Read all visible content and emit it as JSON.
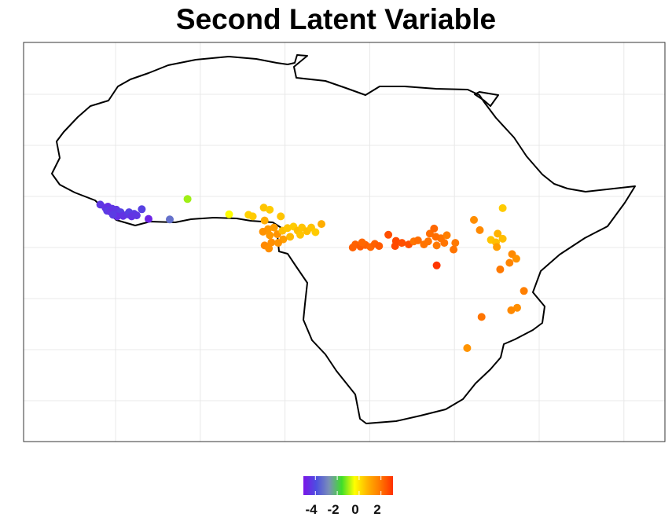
{
  "title": "Second Latent Variable",
  "legend": {
    "tick_labels": [
      "-4",
      "-2",
      "0",
      "2"
    ],
    "tick_values": [
      -4,
      -2,
      0,
      2
    ],
    "range": [
      -5.1,
      3.1
    ],
    "gradient_colors": [
      "#7a16e8",
      "#4d4ee0",
      "#7a8fb8",
      "#3fde2a",
      "#ffff00",
      "#ffb400",
      "#ff7800",
      "#ff3000"
    ]
  },
  "chart_data": {
    "type": "scatter",
    "title": "Second Latent Variable",
    "xlabel": "",
    "ylabel": "",
    "xlim": [
      -20,
      52
    ],
    "ylim": [
      -36,
      38
    ],
    "x_unit": "longitude",
    "y_unit": "latitude",
    "grid": true,
    "legend_position": "bottom",
    "colorbar": {
      "ticks": [
        -4,
        -2,
        0,
        2
      ],
      "range": [
        -5.1,
        3.1
      ]
    },
    "points": [
      {
        "x": -11.8,
        "y": 8.4,
        "value": -4.4
      },
      {
        "x": -11.2,
        "y": 7.8,
        "value": -4.5
      },
      {
        "x": -10.9,
        "y": 8.0,
        "value": -4.6
      },
      {
        "x": -10.4,
        "y": 7.6,
        "value": -4.4
      },
      {
        "x": -11.0,
        "y": 7.2,
        "value": -4.3
      },
      {
        "x": -10.6,
        "y": 7.0,
        "value": -4.5
      },
      {
        "x": -9.9,
        "y": 7.4,
        "value": -4.4
      },
      {
        "x": -9.4,
        "y": 6.9,
        "value": -4.2
      },
      {
        "x": -9.8,
        "y": 6.1,
        "value": -4.6
      },
      {
        "x": -10.3,
        "y": 6.4,
        "value": -4.3
      },
      {
        "x": -9.1,
        "y": 6.2,
        "value": -4.5
      },
      {
        "x": -8.6,
        "y": 6.5,
        "value": -4.4
      },
      {
        "x": -8.4,
        "y": 6.9,
        "value": -4.2
      },
      {
        "x": -7.8,
        "y": 6.6,
        "value": -4.3
      },
      {
        "x": -8.1,
        "y": 6.1,
        "value": -4.5
      },
      {
        "x": -7.5,
        "y": 6.3,
        "value": -4.4
      },
      {
        "x": -6.9,
        "y": 7.5,
        "value": -4.2
      },
      {
        "x": -6.1,
        "y": 5.6,
        "value": -4.8
      },
      {
        "x": -3.6,
        "y": 5.5,
        "value": -3.3
      },
      {
        "x": -1.5,
        "y": 9.5,
        "value": -1.0
      },
      {
        "x": 3.4,
        "y": 6.5,
        "value": -0.4
      },
      {
        "x": 5.7,
        "y": 6.4,
        "value": 0.3
      },
      {
        "x": 6.2,
        "y": 6.1,
        "value": 0.4
      },
      {
        "x": 7.5,
        "y": 7.8,
        "value": 0.5
      },
      {
        "x": 8.2,
        "y": 7.4,
        "value": 0.4
      },
      {
        "x": 9.5,
        "y": 6.1,
        "value": 0.5
      },
      {
        "x": 7.6,
        "y": 5.3,
        "value": 0.9
      },
      {
        "x": 8.0,
        "y": 3.6,
        "value": 1.3
      },
      {
        "x": 7.4,
        "y": 3.1,
        "value": 1.4
      },
      {
        "x": 8.7,
        "y": 3.9,
        "value": 1.2
      },
      {
        "x": 8.2,
        "y": 2.4,
        "value": 1.3
      },
      {
        "x": 9.1,
        "y": 2.6,
        "value": 1.4
      },
      {
        "x": 9.7,
        "y": 3.3,
        "value": 0.6
      },
      {
        "x": 10.3,
        "y": 3.8,
        "value": 0.5
      },
      {
        "x": 11.0,
        "y": 4.1,
        "value": 0.4
      },
      {
        "x": 11.5,
        "y": 3.3,
        "value": 0.6
      },
      {
        "x": 12.0,
        "y": 3.9,
        "value": 0.5
      },
      {
        "x": 12.6,
        "y": 3.2,
        "value": 0.6
      },
      {
        "x": 13.1,
        "y": 3.9,
        "value": 0.5
      },
      {
        "x": 13.6,
        "y": 3.0,
        "value": 0.4
      },
      {
        "x": 14.3,
        "y": 4.6,
        "value": 0.9
      },
      {
        "x": 10.6,
        "y": 2.1,
        "value": 0.7
      },
      {
        "x": 11.8,
        "y": 2.5,
        "value": 0.5
      },
      {
        "x": 9.8,
        "y": 1.6,
        "value": 1.2
      },
      {
        "x": 8.4,
        "y": 1.0,
        "value": 1.5
      },
      {
        "x": 7.6,
        "y": 0.4,
        "value": 1.6
      },
      {
        "x": 8.1,
        "y": -0.2,
        "value": 1.5
      },
      {
        "x": 9.2,
        "y": 0.9,
        "value": 1.4
      },
      {
        "x": 18.3,
        "y": 0.6,
        "value": 2.3
      },
      {
        "x": 18.9,
        "y": 0.2,
        "value": 2.4
      },
      {
        "x": 19.5,
        "y": 0.5,
        "value": 2.3
      },
      {
        "x": 20.1,
        "y": 0.1,
        "value": 2.2
      },
      {
        "x": 20.6,
        "y": 0.7,
        "value": 2.3
      },
      {
        "x": 19.1,
        "y": 1.0,
        "value": 2.2
      },
      {
        "x": 21.1,
        "y": 0.3,
        "value": 2.4
      },
      {
        "x": 18.0,
        "y": 0.0,
        "value": 2.3
      },
      {
        "x": 22.2,
        "y": 2.5,
        "value": 2.6
      },
      {
        "x": 23.1,
        "y": 1.3,
        "value": 2.7
      },
      {
        "x": 23.8,
        "y": 0.9,
        "value": 2.6
      },
      {
        "x": 23.0,
        "y": 0.3,
        "value": 2.7
      },
      {
        "x": 24.6,
        "y": 0.6,
        "value": 2.6
      },
      {
        "x": 25.2,
        "y": 1.2,
        "value": 2.0
      },
      {
        "x": 25.7,
        "y": 1.4,
        "value": 2.1
      },
      {
        "x": 26.4,
        "y": 0.6,
        "value": 2.0
      },
      {
        "x": 27.1,
        "y": 2.7,
        "value": 2.1
      },
      {
        "x": 27.6,
        "y": 3.7,
        "value": 2.2
      },
      {
        "x": 26.9,
        "y": 1.2,
        "value": 2.0
      },
      {
        "x": 27.9,
        "y": 0.4,
        "value": 1.9
      },
      {
        "x": 28.4,
        "y": 1.8,
        "value": 2.0
      },
      {
        "x": 29.1,
        "y": 2.4,
        "value": 1.8
      },
      {
        "x": 27.8,
        "y": 2.1,
        "value": 2.1
      },
      {
        "x": 28.8,
        "y": 0.9,
        "value": 2.0
      },
      {
        "x": 30.1,
        "y": 0.9,
        "value": 1.9
      },
      {
        "x": 29.9,
        "y": -0.4,
        "value": 2.0
      },
      {
        "x": 27.9,
        "y": -3.5,
        "value": 3.0
      },
      {
        "x": 32.3,
        "y": 5.4,
        "value": 1.5
      },
      {
        "x": 33.0,
        "y": 3.4,
        "value": 1.6
      },
      {
        "x": 34.3,
        "y": 1.5,
        "value": 0.5
      },
      {
        "x": 34.9,
        "y": 1.0,
        "value": 0.6
      },
      {
        "x": 35.1,
        "y": 2.7,
        "value": 0.8
      },
      {
        "x": 35.7,
        "y": 1.7,
        "value": 0.6
      },
      {
        "x": 35.7,
        "y": 7.7,
        "value": 0.4
      },
      {
        "x": 35.0,
        "y": 0.1,
        "value": 1.2
      },
      {
        "x": 36.8,
        "y": -1.3,
        "value": 1.6
      },
      {
        "x": 37.3,
        "y": -2.2,
        "value": 1.4
      },
      {
        "x": 36.5,
        "y": -3.0,
        "value": 1.7
      },
      {
        "x": 35.4,
        "y": -4.3,
        "value": 1.9
      },
      {
        "x": 38.2,
        "y": -8.5,
        "value": 1.8
      },
      {
        "x": 37.4,
        "y": -11.8,
        "value": 1.5
      },
      {
        "x": 36.7,
        "y": -12.3,
        "value": 1.6
      },
      {
        "x": 33.2,
        "y": -13.6,
        "value": 2.0
      },
      {
        "x": 31.5,
        "y": -19.7,
        "value": 1.4
      }
    ]
  }
}
